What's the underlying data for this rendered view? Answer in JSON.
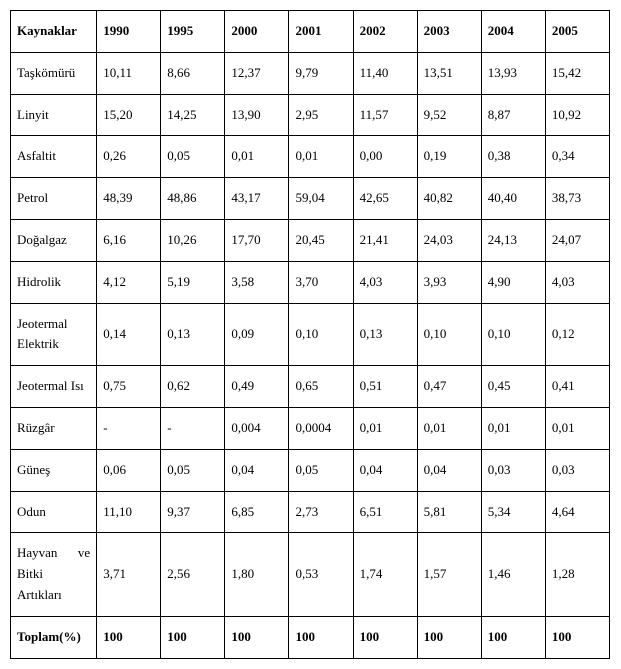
{
  "table": {
    "type": "table",
    "background_color": "#ffffff",
    "border_color": "#000000",
    "text_color": "#000000",
    "font_family": "Times New Roman",
    "font_size_pt": 10,
    "columns": [
      "Kaynaklar",
      "1990",
      "1995",
      "2000",
      "2001",
      "2002",
      "2003",
      "2004",
      "2005"
    ],
    "rows": [
      {
        "label": "Taşkömürü",
        "cells": [
          "10,11",
          "8,66",
          "12,37",
          "9,79",
          "11,40",
          "13,51",
          "13,93",
          "15,42"
        ]
      },
      {
        "label": "Linyit",
        "cells": [
          "15,20",
          "14,25",
          "13,90",
          "2,95",
          "11,57",
          "9,52",
          "8,87",
          "10,92"
        ]
      },
      {
        "label": "Asfaltit",
        "cells": [
          "0,26",
          "0,05",
          "0,01",
          "0,01",
          "0,00",
          "0,19",
          "0,38",
          "0,34"
        ]
      },
      {
        "label": "Petrol",
        "cells": [
          "48,39",
          "48,86",
          "43,17",
          "59,04",
          "42,65",
          "40,82",
          "40,40",
          "38,73"
        ]
      },
      {
        "label": "Doğalgaz",
        "cells": [
          "6,16",
          "10,26",
          "17,70",
          "20,45",
          "21,41",
          "24,03",
          "24,13",
          "24,07"
        ]
      },
      {
        "label": "Hidrolik",
        "cells": [
          "4,12",
          "5,19",
          "3,58",
          "3,70",
          "4,03",
          "3,93",
          "4,90",
          "4,03"
        ]
      },
      {
        "label": "Jeotermal Elektrik",
        "cells": [
          "0,14",
          "0,13",
          "0,09",
          "0,10",
          "0,13",
          "0,10",
          "0,10",
          "0,12"
        ]
      },
      {
        "label": "Jeotermal Isı",
        "cells": [
          "0,75",
          "0,62",
          "0,49",
          "0,65",
          "0,51",
          "0,47",
          "0,45",
          "0,41"
        ]
      },
      {
        "label": "Rüzgâr",
        "cells": [
          "-",
          "-",
          "0,004",
          "0,0004",
          "0,01",
          "0,01",
          "0,01",
          "0,01"
        ]
      },
      {
        "label": "Güneş",
        "cells": [
          "0,06",
          "0,05",
          "0,04",
          "0,05",
          "0,04",
          "0,04",
          "0,03",
          "0,03"
        ]
      },
      {
        "label": "Odun",
        "cells": [
          "11,10",
          "9,37",
          "6,85",
          "2,73",
          "6,51",
          "5,81",
          "5,34",
          "4,64"
        ]
      },
      {
        "label": "Hayvan ve Bitki Artıkları",
        "cells": [
          "3,71",
          "2,56",
          "1,80",
          "0,53",
          "1,74",
          "1,57",
          "1,46",
          "1,28"
        ]
      }
    ],
    "total_row": {
      "label": "Toplam(%)",
      "cells": [
        "100",
        "100",
        "100",
        "100",
        "100",
        "100",
        "100",
        "100"
      ]
    }
  }
}
